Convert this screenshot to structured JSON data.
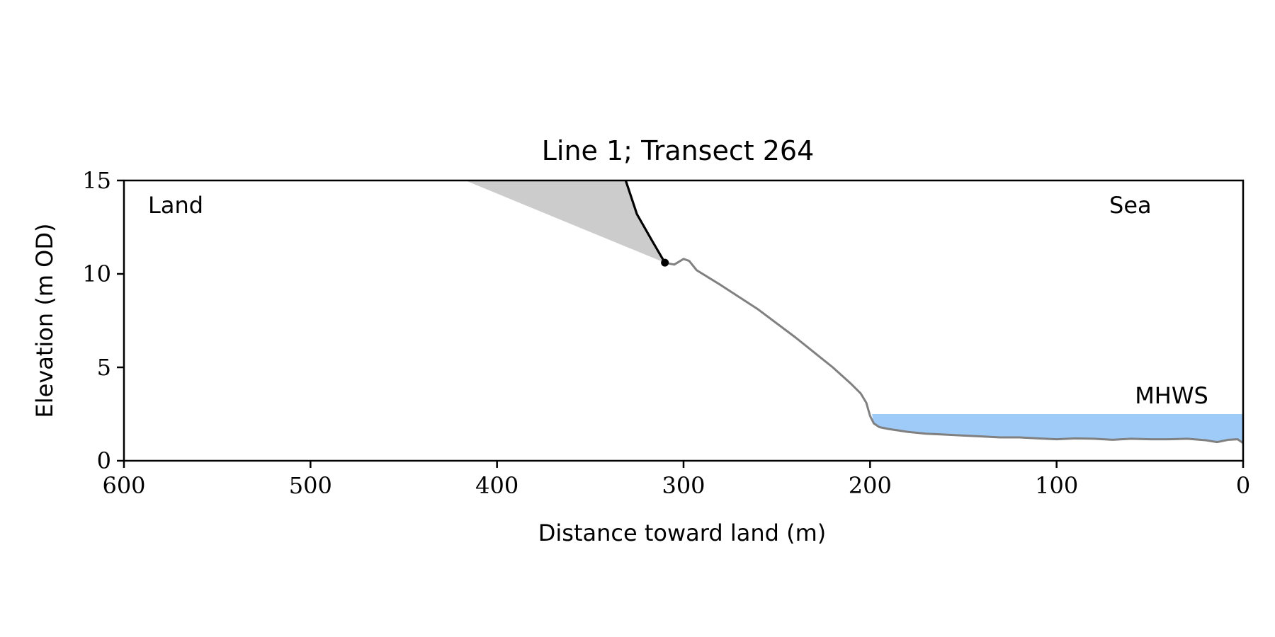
{
  "chart_data": {
    "type": "line",
    "title": "Line 1; Transect 264",
    "xlabel": "Distance toward land (m)",
    "ylabel": "Elevation (m OD)",
    "xlim": [
      600,
      0
    ],
    "x_inverted": true,
    "ylim": [
      0,
      15
    ],
    "xticks": [
      600,
      500,
      400,
      300,
      200,
      100,
      0
    ],
    "yticks": [
      0,
      5,
      10,
      15
    ],
    "grid": false,
    "annotations": {
      "land": "Land",
      "sea": "Sea",
      "mhws": "MHWS"
    },
    "colors": {
      "profile": "#808080",
      "cliff": "#000000",
      "wedge": "#cccccc",
      "water": "#9fcbf8",
      "mhws_text": "#6f9fcd"
    },
    "mhws_level": 2.5,
    "mhws_x_range": [
      199,
      0
    ],
    "cliff_top_point": {
      "x": 310,
      "y": 10.6
    },
    "wedge": [
      {
        "x": 417,
        "y": 15
      },
      {
        "x": 331,
        "y": 15
      },
      {
        "x": 325,
        "y": 13.2
      },
      {
        "x": 317,
        "y": 11.8
      },
      {
        "x": 310,
        "y": 10.6
      }
    ],
    "cliff_line": [
      {
        "x": 331,
        "y": 15
      },
      {
        "x": 325,
        "y": 13.2
      },
      {
        "x": 317,
        "y": 11.8
      },
      {
        "x": 310,
        "y": 10.6
      }
    ],
    "profile": [
      {
        "x": 310,
        "y": 10.6
      },
      {
        "x": 305,
        "y": 10.5
      },
      {
        "x": 300,
        "y": 10.8
      },
      {
        "x": 297,
        "y": 10.7
      },
      {
        "x": 293,
        "y": 10.2
      },
      {
        "x": 280,
        "y": 9.4
      },
      {
        "x": 260,
        "y": 8.1
      },
      {
        "x": 240,
        "y": 6.6
      },
      {
        "x": 220,
        "y": 5.0
      },
      {
        "x": 210,
        "y": 4.1
      },
      {
        "x": 205,
        "y": 3.6
      },
      {
        "x": 202,
        "y": 3.1
      },
      {
        "x": 200,
        "y": 2.4
      },
      {
        "x": 198,
        "y": 2.0
      },
      {
        "x": 195,
        "y": 1.8
      },
      {
        "x": 190,
        "y": 1.7
      },
      {
        "x": 180,
        "y": 1.55
      },
      {
        "x": 170,
        "y": 1.45
      },
      {
        "x": 160,
        "y": 1.4
      },
      {
        "x": 150,
        "y": 1.35
      },
      {
        "x": 140,
        "y": 1.3
      },
      {
        "x": 130,
        "y": 1.25
      },
      {
        "x": 120,
        "y": 1.25
      },
      {
        "x": 110,
        "y": 1.2
      },
      {
        "x": 100,
        "y": 1.15
      },
      {
        "x": 90,
        "y": 1.2
      },
      {
        "x": 80,
        "y": 1.18
      },
      {
        "x": 70,
        "y": 1.12
      },
      {
        "x": 60,
        "y": 1.18
      },
      {
        "x": 50,
        "y": 1.15
      },
      {
        "x": 40,
        "y": 1.15
      },
      {
        "x": 30,
        "y": 1.18
      },
      {
        "x": 20,
        "y": 1.1
      },
      {
        "x": 14,
        "y": 1.0
      },
      {
        "x": 8,
        "y": 1.12
      },
      {
        "x": 3,
        "y": 1.15
      },
      {
        "x": 0,
        "y": 0.95
      }
    ]
  }
}
